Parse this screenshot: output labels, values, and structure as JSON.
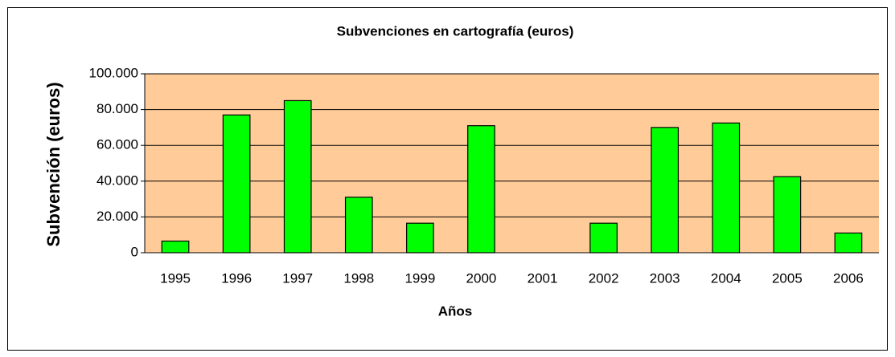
{
  "chart_data": {
    "type": "bar",
    "title": "Subvenciones en cartografía (euros)",
    "x_label": "Años",
    "y_label": "Subvención (euros)",
    "categories": [
      "1995",
      "1996",
      "1997",
      "1998",
      "1999",
      "2000",
      "2001",
      "2002",
      "2003",
      "2004",
      "2005",
      "2006"
    ],
    "values": [
      6500,
      77000,
      85000,
      31000,
      16500,
      71000,
      0,
      16500,
      70000,
      72500,
      42500,
      11000
    ],
    "color": "#00ff00",
    "plot_background": "#ffcc99",
    "ylim": [
      0,
      100000
    ],
    "yticks": [
      0,
      {
        "value": 20000,
        "label": "20.000"
      },
      {
        "value": 40000,
        "label": "40.000"
      },
      {
        "value": 60000,
        "label": "60.000"
      },
      {
        "value": 80000,
        "label": "80.000"
      },
      {
        "value": 100000,
        "label": "100.000"
      }
    ],
    "grid": true
  }
}
